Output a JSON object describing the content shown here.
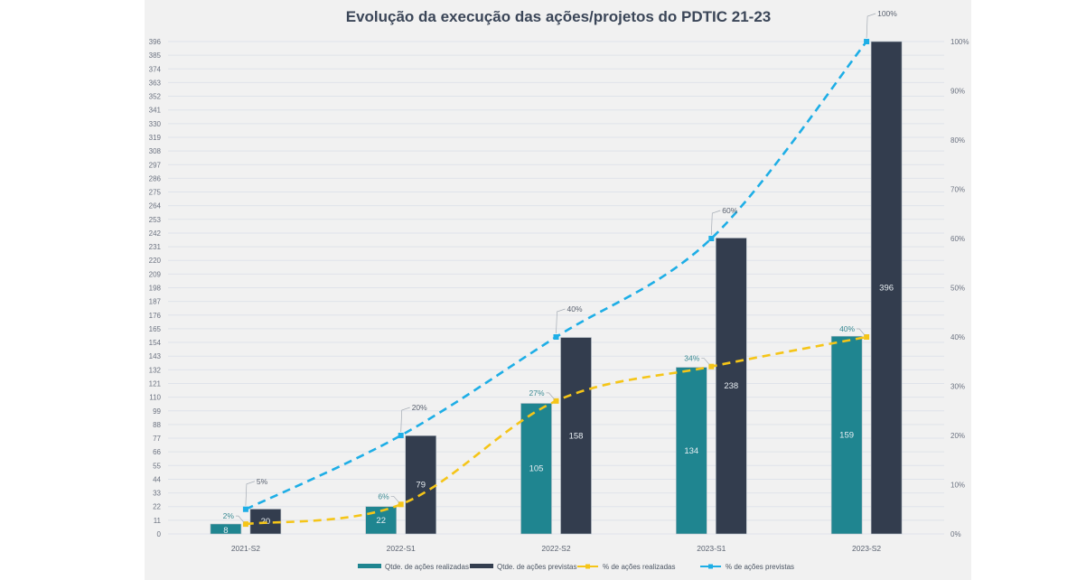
{
  "chart_data": {
    "type": "bar",
    "title": "Evolução da execução das ações/projetos do PDTIC 21-23",
    "categories": [
      "2021-S2",
      "2022-S1",
      "2022-S2",
      "2023-S1",
      "2023-S2"
    ],
    "series": [
      {
        "name": "Qtde. de ações realizadas",
        "kind": "bar",
        "axis": "left",
        "color": "#1f8590",
        "values": [
          8,
          22,
          105,
          134,
          159
        ],
        "labels": [
          "8",
          "22",
          "105",
          "134",
          "159"
        ]
      },
      {
        "name": "Qtde. de ações previstas",
        "kind": "bar",
        "axis": "left",
        "color": "#333d4e",
        "values": [
          20,
          79,
          158,
          238,
          396
        ],
        "labels": [
          "20",
          "79",
          "158",
          "238",
          "396"
        ]
      },
      {
        "name": "% de ações realizadas",
        "kind": "line",
        "axis": "right",
        "color": "#f5c518",
        "values": [
          2,
          6,
          27,
          34,
          40
        ],
        "labels": [
          "2%",
          "6%",
          "27%",
          "34%",
          "40%"
        ]
      },
      {
        "name": "% de ações previstas",
        "kind": "line",
        "axis": "right",
        "color": "#1eaee6",
        "values": [
          5,
          20,
          40,
          60,
          100
        ],
        "labels": [
          "5%",
          "20%",
          "40%",
          "60%",
          "100%"
        ]
      }
    ],
    "left_axis": {
      "ylim": [
        0,
        396
      ],
      "ticks": [
        "0",
        "11",
        "22",
        "33",
        "44",
        "55",
        "66",
        "77",
        "88",
        "99",
        "110",
        "121",
        "132",
        "143",
        "154",
        "165",
        "176",
        "187",
        "198",
        "209",
        "220",
        "231",
        "242",
        "253",
        "264",
        "275",
        "286",
        "297",
        "308",
        "319",
        "330",
        "341",
        "352",
        "363",
        "374",
        "385",
        "396"
      ]
    },
    "right_axis": {
      "ylim": [
        0,
        100
      ],
      "ticks": [
        "0%",
        "10%",
        "20%",
        "30%",
        "40%",
        "50%",
        "60%",
        "70%",
        "80%",
        "90%",
        "100%"
      ]
    },
    "grid": true,
    "legend_position": "bottom",
    "xlabel": "",
    "ylabel": ""
  }
}
